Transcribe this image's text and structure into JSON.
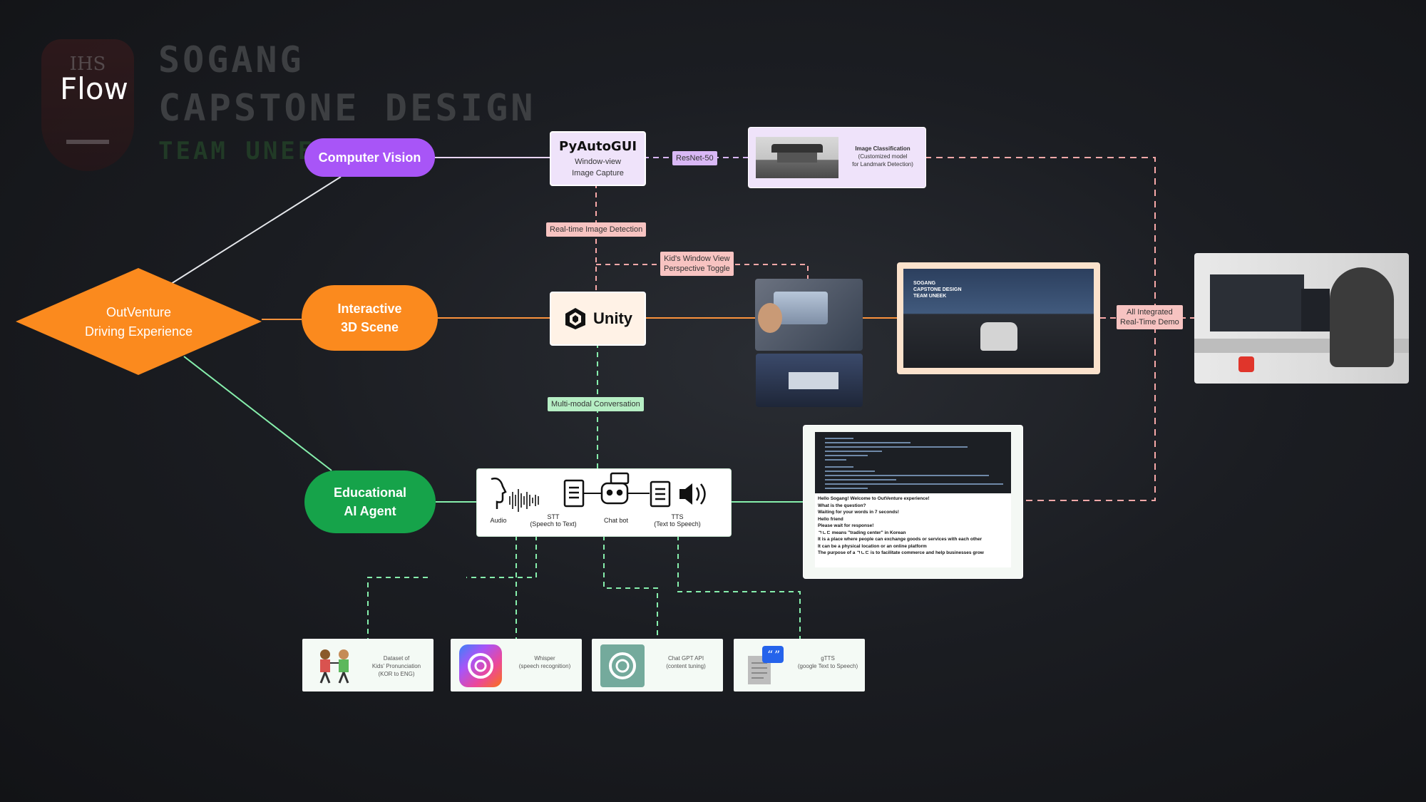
{
  "watermark": {
    "shield_text": "IHS",
    "line1": "SOGANG",
    "line2": "CAPSTONE DESIGN",
    "line3": "TEAM UNEEK"
  },
  "title": "Flow",
  "diamond": {
    "label": "OutVenture\nDriving Experience",
    "color": "#fb8a1e"
  },
  "nodes": {
    "computer_vision": {
      "label": "Computer Vision",
      "color": "#a855f7"
    },
    "interactive_3d": {
      "label": "Interactive\n3D Scene",
      "color": "#fb8a1e"
    },
    "educational_ai": {
      "label": "Educational\nAI Agent",
      "color": "#16a34a"
    }
  },
  "pyautogui": {
    "title": "PyAutoGUI",
    "subtitle": "Window-view\nImage Capture"
  },
  "tags": {
    "resnet": "ResNet-50",
    "realtime_detection": "Real-time Image Detection",
    "kids_window": "Kid's Window View\nPerspective Toggle",
    "multimodal": "Multi-modal Conversation",
    "all_integrated": "All Integrated\nReal-Time Demo"
  },
  "image_classification": {
    "title": "Image Classification",
    "subtitle": "(Customized model\nfor Landmark Detection)"
  },
  "unity": {
    "label": "Unity"
  },
  "game_logo": "SOGANG\nCAPSTONE DESIGN\nTEAM UNEEK",
  "pipeline": {
    "audio": "Audio",
    "stt": "STT\n(Speech to Text)",
    "chatbot": "Chat bot",
    "tts": "TTS\n(Text to Speech)"
  },
  "console_output": "Hello Sogang! Welcome to OutVenture experience!\nWhat is the question?\nWaiting for your words in 7 seconds!\nHello friend\nPlease wait for response!\nㄱㄴㄷ means \"trading center\" in Korean\nIt is a place where people can exchange goods or services with each other\nIt can be a physical location or an online platform\nThe purpose of a ㄱㄴㄷ is to facilitate commerce and help businesses grow",
  "bottom_boxes": [
    {
      "label": "Dataset of\nKids' Pronunciation\n(KOR to ENG)"
    },
    {
      "label": "Whisper\n(speech recognition)"
    },
    {
      "label": "Chat GPT API\n(content tuning)"
    },
    {
      "label": "gTTS\n(google Text to Speech)"
    }
  ],
  "colors": {
    "purple_line": "#d8b4fe",
    "orange_line": "#fb923c",
    "green_line": "#86efac",
    "pink_line": "#f9a8a8"
  }
}
